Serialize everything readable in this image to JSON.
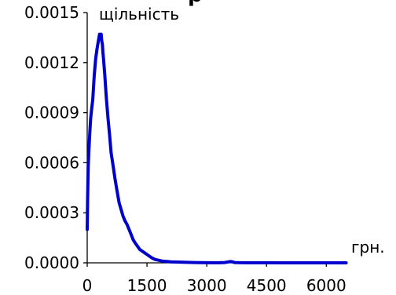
{
  "chart_data": {
    "type": "line",
    "title_fragment": "р",
    "ylabel": "щільність",
    "xlabel": "грн.",
    "xlim": [
      0,
      7000
    ],
    "ylim": [
      0,
      0.0015
    ],
    "x_ticks": [
      {
        "value": 0,
        "label": "0"
      },
      {
        "value": 1500,
        "label": "1500"
      },
      {
        "value": 3000,
        "label": "3000"
      },
      {
        "value": 4500,
        "label": "4500"
      },
      {
        "value": 6000,
        "label": "6000"
      }
    ],
    "y_ticks": [
      {
        "value": 0,
        "label": "0.0000"
      },
      {
        "value": 0.0003,
        "label": "0.0003"
      },
      {
        "value": 0.0006,
        "label": "0.0006"
      },
      {
        "value": 0.0009,
        "label": "0.0009"
      },
      {
        "value": 0.0012,
        "label": "0.0012"
      },
      {
        "value": 0.0015,
        "label": "0.0015"
      }
    ],
    "grid": false,
    "line_color": "#0000cc",
    "series": [
      {
        "x": [
          0,
          10,
          25,
          45,
          65,
          85,
          110,
          140,
          175,
          210,
          245,
          280,
          310,
          330,
          350,
          365,
          380,
          395,
          410,
          440,
          480,
          520,
          560,
          600,
          650,
          700,
          750,
          800,
          850,
          900,
          950,
          1000,
          1050,
          1100,
          1150,
          1200,
          1260,
          1320,
          1380,
          1440,
          1500,
          1560,
          1620,
          1700,
          1800,
          1900,
          2000,
          2100,
          2200,
          2350,
          2500,
          2700,
          2900,
          3100,
          3300,
          3450,
          3550,
          3600,
          3650,
          3700,
          3800,
          4000,
          4500,
          5000,
          5500,
          6000,
          6500
        ],
        "y": [
          0.0002,
          0.00038,
          0.00058,
          0.00069,
          0.00078,
          0.00086,
          0.00092,
          0.00098,
          0.00112,
          0.00122,
          0.00128,
          0.00133,
          0.00137,
          0.00136,
          0.00137,
          0.00133,
          0.00131,
          0.00126,
          0.00122,
          0.00113,
          0.00099,
          0.00087,
          0.00077,
          0.00066,
          0.00058,
          0.0005,
          0.00043,
          0.00036,
          0.00032,
          0.00028,
          0.00025,
          0.00023,
          0.0002,
          0.00017,
          0.00014,
          0.00012,
          0.0001,
          8e-05,
          7e-05,
          6e-05,
          5e-05,
          4e-05,
          3e-05,
          2e-05,
          1.5e-05,
          1e-05,
          8e-06,
          6e-06,
          5e-06,
          4e-06,
          3e-06,
          2e-06,
          1e-06,
          5e-07,
          5e-07,
          2e-06,
          6e-06,
          8e-06,
          6e-06,
          2e-06,
          1e-06,
          5e-07,
          3e-07,
          2e-07,
          1e-07,
          1e-07,
          1e-07
        ]
      }
    ]
  }
}
